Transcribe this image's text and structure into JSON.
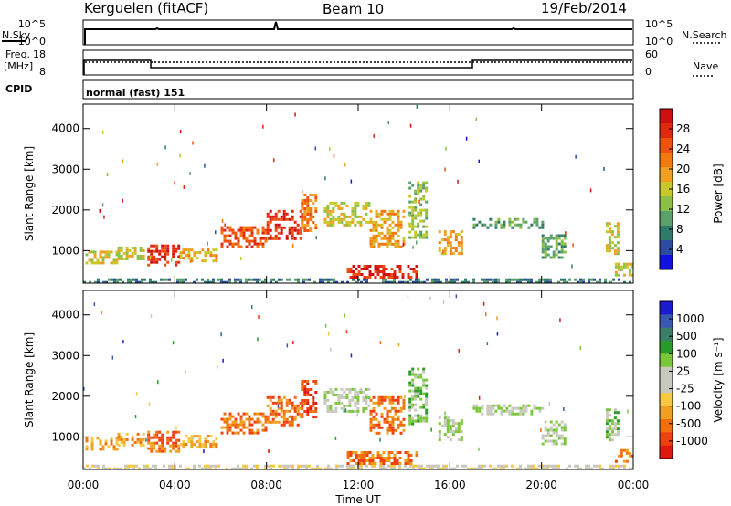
{
  "header": {
    "station": "Kerguelen (fitACF)",
    "beam": "Beam 10",
    "date": "19/Feb/2014"
  },
  "top_panels": {
    "nsky": {
      "label": "N.Sky",
      "ticks": [
        "10^5",
        "10^0"
      ]
    },
    "nsearch": {
      "label": "N.Search",
      "ticks": [
        "10^5",
        "10^0"
      ]
    },
    "freq": {
      "label_line1": "Freq.",
      "label_line2": "[MHz]",
      "ticks": [
        "18",
        "8"
      ]
    },
    "nave": {
      "label": "Nave",
      "ticks": [
        "60",
        "0"
      ]
    },
    "cpid": {
      "label": "CPID",
      "value": "normal (fast) 151"
    }
  },
  "chart_data": [
    {
      "type": "heatmap",
      "title": "",
      "xlabel": "Time UT",
      "ylabel": "Slant Range [km]",
      "xlim": [
        0,
        24
      ],
      "ylim": [
        200,
        4600
      ],
      "x_ticks": [
        "00:00",
        "04:00",
        "08:00",
        "12:00",
        "16:00",
        "20:00",
        "00:00"
      ],
      "y_ticks": [
        1000,
        2000,
        3000,
        4000
      ],
      "colorbar": {
        "label": "Power [dB]",
        "ticks": [
          "4",
          "8",
          "12",
          "16",
          "20",
          "24",
          "28"
        ],
        "range": [
          0,
          30
        ],
        "colors": [
          "#1010e0",
          "#2c4ca0",
          "#2f7a68",
          "#5aa06a",
          "#8cc046",
          "#c8c828",
          "#f0a020",
          "#f07a10",
          "#f05010",
          "#e02810",
          "#d01010"
        ]
      },
      "regions": [
        {
          "t": [
            0.0,
            24.0
          ],
          "r": [
            200,
            320
          ],
          "level": 6
        },
        {
          "t": [
            0.1,
            1.5
          ],
          "r": [
            700,
            1000
          ],
          "level": 14
        },
        {
          "t": [
            1.5,
            2.6
          ],
          "r": [
            800,
            1100
          ],
          "level": 16
        },
        {
          "t": [
            2.8,
            4.2
          ],
          "r": [
            650,
            1150
          ],
          "level": 26
        },
        {
          "t": [
            4.2,
            5.8
          ],
          "r": [
            750,
            1050
          ],
          "level": 18
        },
        {
          "t": [
            6.0,
            8.0
          ],
          "r": [
            1100,
            1600
          ],
          "level": 24
        },
        {
          "t": [
            8.0,
            9.5
          ],
          "r": [
            1300,
            2000
          ],
          "level": 26
        },
        {
          "t": [
            9.5,
            10.2
          ],
          "r": [
            1500,
            2400
          ],
          "level": 22
        },
        {
          "t": [
            10.5,
            12.5
          ],
          "r": [
            1600,
            2200
          ],
          "level": 14
        },
        {
          "t": [
            12.5,
            14.0
          ],
          "r": [
            1100,
            2000
          ],
          "level": 18
        },
        {
          "t": [
            11.5,
            14.5
          ],
          "r": [
            350,
            650
          ],
          "level": 28
        },
        {
          "t": [
            14.2,
            15.0
          ],
          "r": [
            1300,
            2700
          ],
          "level": 12
        },
        {
          "t": [
            15.5,
            16.5
          ],
          "r": [
            900,
            1500
          ],
          "level": 18
        },
        {
          "t": [
            17.0,
            20.0
          ],
          "r": [
            1550,
            1800
          ],
          "level": 10
        },
        {
          "t": [
            20.0,
            21.0
          ],
          "r": [
            800,
            1400
          ],
          "level": 8
        },
        {
          "t": [
            22.8,
            23.3
          ],
          "r": [
            900,
            1700
          ],
          "level": 16
        },
        {
          "t": [
            23.2,
            24.0
          ],
          "r": [
            400,
            700
          ],
          "level": 14
        }
      ]
    },
    {
      "type": "heatmap",
      "title": "",
      "xlabel": "Time UT",
      "ylabel": "Slant Range [km]",
      "xlim": [
        0,
        24
      ],
      "ylim": [
        200,
        4600
      ],
      "x_ticks": [
        "00:00",
        "04:00",
        "08:00",
        "12:00",
        "16:00",
        "20:00",
        "00:00"
      ],
      "y_ticks": [
        1000,
        2000,
        3000,
        4000
      ],
      "colorbar": {
        "label": "Velocity [m s⁻¹]",
        "ticks": [
          "1000",
          "500",
          "100",
          "25",
          "-25",
          "-100",
          "-500",
          "-1000"
        ],
        "colors": [
          "#1a1ad0",
          "#3a58b0",
          "#3b7f6a",
          "#2a9a2a",
          "#7ac83a",
          "#c8c8bc",
          "#c8c8bc",
          "#f8c840",
          "#f0a020",
          "#f07010",
          "#f04010",
          "#e01810"
        ]
      },
      "regions": [
        {
          "t": [
            0.0,
            24.0
          ],
          "r": [
            200,
            320
          ],
          "cat": 6
        },
        {
          "t": [
            0.1,
            1.5
          ],
          "r": [
            700,
            1000
          ],
          "cat": 8
        },
        {
          "t": [
            1.5,
            2.6
          ],
          "r": [
            800,
            1100
          ],
          "cat": 8
        },
        {
          "t": [
            2.8,
            4.2
          ],
          "r": [
            650,
            1150
          ],
          "cat": 9
        },
        {
          "t": [
            4.2,
            5.8
          ],
          "r": [
            750,
            1050
          ],
          "cat": 8
        },
        {
          "t": [
            6.0,
            8.0
          ],
          "r": [
            1100,
            1600
          ],
          "cat": 9
        },
        {
          "t": [
            8.0,
            9.5
          ],
          "r": [
            1300,
            2000
          ],
          "cat": 9
        },
        {
          "t": [
            9.5,
            10.2
          ],
          "r": [
            1500,
            2400
          ],
          "cat": 10
        },
        {
          "t": [
            10.5,
            12.5
          ],
          "r": [
            1600,
            2200
          ],
          "cat": 5
        },
        {
          "t": [
            12.5,
            14.0
          ],
          "r": [
            1100,
            2000
          ],
          "cat": 9
        },
        {
          "t": [
            11.5,
            14.5
          ],
          "r": [
            350,
            650
          ],
          "cat": 9
        },
        {
          "t": [
            14.2,
            15.0
          ],
          "r": [
            1300,
            2700
          ],
          "cat": 4
        },
        {
          "t": [
            15.5,
            16.5
          ],
          "r": [
            900,
            1500
          ],
          "cat": 5
        },
        {
          "t": [
            17.0,
            20.0
          ],
          "r": [
            1550,
            1800
          ],
          "cat": 5
        },
        {
          "t": [
            20.0,
            21.0
          ],
          "r": [
            800,
            1400
          ],
          "cat": 5
        },
        {
          "t": [
            22.8,
            23.3
          ],
          "r": [
            900,
            1700
          ],
          "cat": 4
        },
        {
          "t": [
            23.2,
            24.0
          ],
          "r": [
            400,
            700
          ],
          "cat": 9
        }
      ]
    }
  ]
}
